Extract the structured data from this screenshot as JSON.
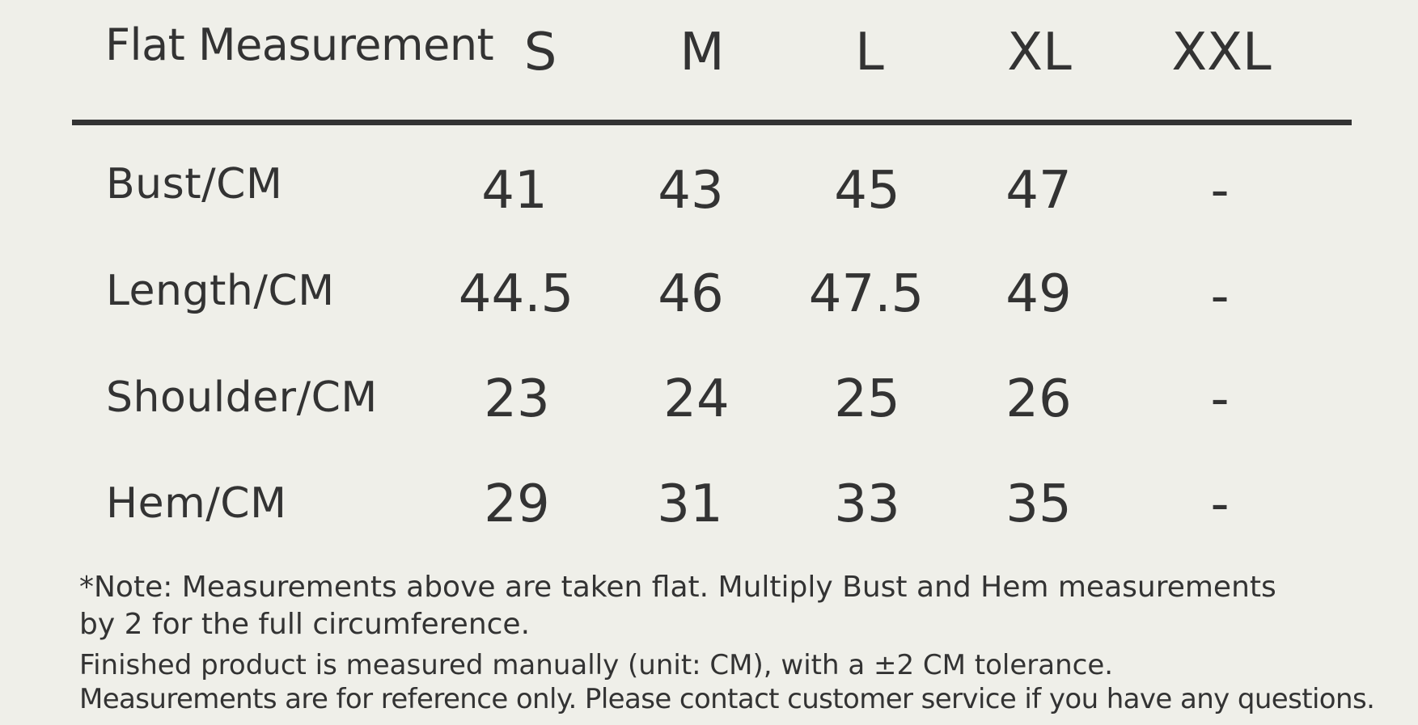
{
  "table": {
    "corner_label": "Flat Measurement",
    "sizes": [
      "S",
      "M",
      "L",
      "XL",
      "XXL"
    ],
    "rows": [
      {
        "label": "Bust/CM",
        "values": [
          "41",
          "43",
          "45",
          "47",
          "-"
        ]
      },
      {
        "label": "Length/CM",
        "values": [
          "44.5",
          "46",
          "47.5",
          "49",
          "-"
        ]
      },
      {
        "label": "Shoulder/CM",
        "values": [
          "23",
          "24",
          "25",
          "26",
          "-"
        ]
      },
      {
        "label": "Hem/CM",
        "values": [
          "29",
          "31",
          "33",
          "35",
          "-"
        ]
      }
    ]
  },
  "notes": {
    "line1": "*Note: Measurements above are taken flat. Multiply Bust and Hem measurements",
    "line2": "by 2 for the full circumference.",
    "line3": "Finished product is measured manually (unit: CM), with a ±2 CM tolerance.",
    "line4": "Measurements are for reference only. Please contact customer service if you have any questions."
  }
}
